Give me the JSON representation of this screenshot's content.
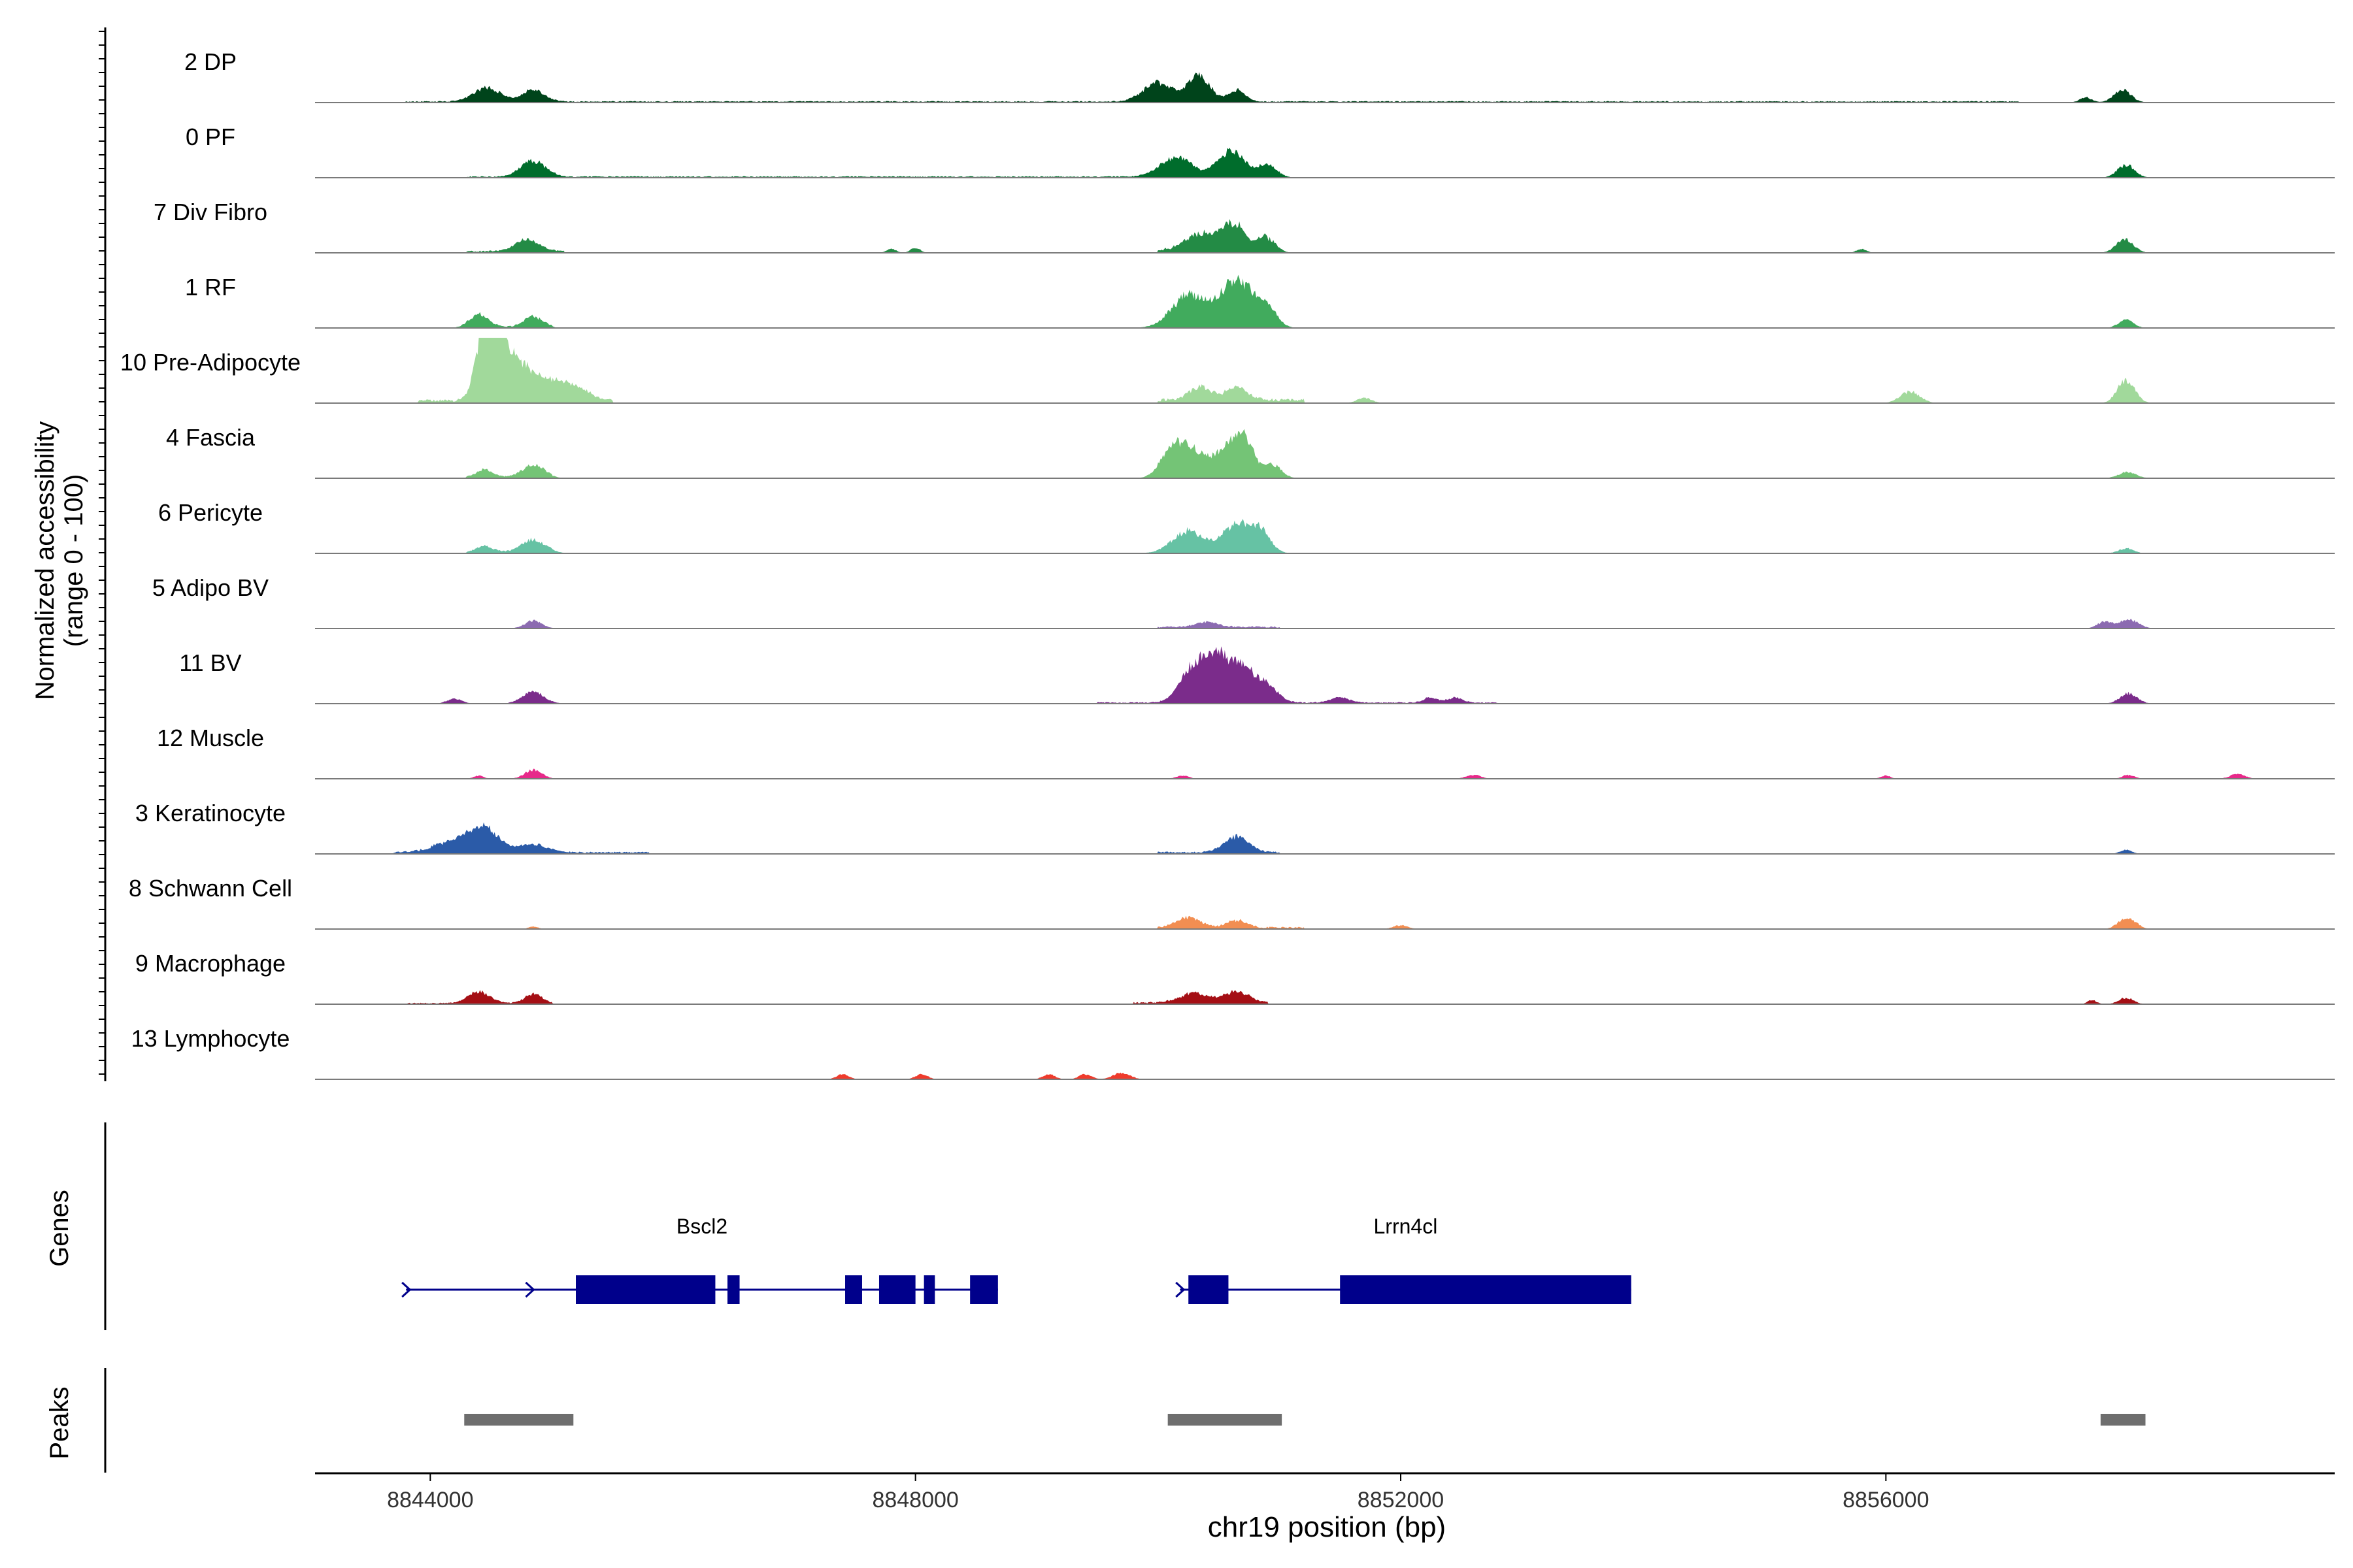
{
  "chart_data": {
    "type": "area",
    "description_free": true,
    "ylabel_line1": "Normalized accessibility",
    "ylabel_line2": "(range 0 - 100)",
    "xlabel": "chr19 position (bp)",
    "xlim": [
      8843050,
      8859700
    ],
    "xticks": [
      8844000,
      8848000,
      8852000,
      8856000
    ],
    "xtick_labels": [
      "8844000",
      "8848000",
      "8852000",
      "8856000"
    ],
    "genes_label": "Genes",
    "peaks_label": "Peaks",
    "tracks": [
      {
        "name": "2 DP",
        "color": "#00441b",
        "segments": [
          [
            8843800,
            8857100,
            0.02
          ]
        ],
        "peaks": [
          [
            8844470,
            110,
            0.22
          ],
          [
            8844850,
            90,
            0.18
          ],
          [
            8850000,
            120,
            0.3
          ],
          [
            8850340,
            90,
            0.42
          ],
          [
            8850650,
            70,
            0.18
          ],
          [
            8857950,
            70,
            0.2
          ],
          [
            8857650,
            50,
            0.08
          ]
        ]
      },
      {
        "name": "0 PF",
        "color": "#006d2c",
        "segments": [
          [
            8844300,
            8851000,
            0.02
          ]
        ],
        "peaks": [
          [
            8844850,
            100,
            0.25
          ],
          [
            8850150,
            130,
            0.3
          ],
          [
            8850600,
            110,
            0.4
          ],
          [
            8850900,
            80,
            0.18
          ],
          [
            8857980,
            70,
            0.2
          ]
        ]
      },
      {
        "name": "7 Div Fibro",
        "color": "#238b45",
        "segments": [
          [
            8844300,
            8845100,
            0.03
          ],
          [
            8850000,
            8850900,
            0.06
          ]
        ],
        "peaks": [
          [
            8844800,
            100,
            0.18
          ],
          [
            8850350,
            120,
            0.25
          ],
          [
            8850620,
            100,
            0.4
          ],
          [
            8850900,
            70,
            0.22
          ],
          [
            8848000,
            40,
            0.08
          ],
          [
            8847800,
            40,
            0.06
          ],
          [
            8855800,
            40,
            0.06
          ],
          [
            8857970,
            70,
            0.22
          ]
        ]
      },
      {
        "name": "1 RF",
        "color": "#41ab5d",
        "segments": [
          [
            8844300,
            8845000,
            0.02
          ]
        ],
        "peaks": [
          [
            8844400,
            80,
            0.2
          ],
          [
            8844850,
            80,
            0.16
          ],
          [
            8850250,
            140,
            0.5
          ],
          [
            8850650,
            140,
            0.75
          ],
          [
            8850900,
            80,
            0.25
          ],
          [
            8857980,
            60,
            0.14
          ]
        ]
      },
      {
        "name": "10 Pre-Adipocyte",
        "color": "#a1d99b",
        "segments": [
          [
            8843900,
            8845500,
            0.05
          ],
          [
            8850000,
            8851200,
            0.06
          ]
        ],
        "peaks": [
          [
            8844450,
            70,
            1.0
          ],
          [
            8844550,
            90,
            0.75
          ],
          [
            8844700,
            120,
            0.45
          ],
          [
            8844950,
            160,
            0.3
          ],
          [
            8845200,
            120,
            0.15
          ],
          [
            8850350,
            100,
            0.2
          ],
          [
            8850650,
            90,
            0.2
          ],
          [
            8851700,
            60,
            0.08
          ],
          [
            8856200,
            80,
            0.18
          ],
          [
            8857980,
            70,
            0.36
          ]
        ]
      },
      {
        "name": "4 Fascia",
        "color": "#74c476",
        "segments": [
          [
            8844300,
            8845000,
            0.02
          ]
        ],
        "peaks": [
          [
            8844450,
            70,
            0.12
          ],
          [
            8844850,
            90,
            0.2
          ],
          [
            8850100,
            90,
            0.3
          ],
          [
            8850250,
            120,
            0.45
          ],
          [
            8850550,
            120,
            0.35
          ],
          [
            8850700,
            90,
            0.55
          ],
          [
            8850950,
            70,
            0.2
          ],
          [
            8857990,
            70,
            0.1
          ]
        ]
      },
      {
        "name": "6 Pericyte",
        "color": "#66c2a4",
        "segments": [
          [
            8844300,
            8845000,
            0.02
          ]
        ],
        "peaks": [
          [
            8844450,
            70,
            0.1
          ],
          [
            8844850,
            100,
            0.2
          ],
          [
            8850250,
            130,
            0.35
          ],
          [
            8850650,
            120,
            0.45
          ],
          [
            8850850,
            80,
            0.3
          ],
          [
            8857980,
            60,
            0.08
          ]
        ]
      },
      {
        "name": "5 Adipo BV",
        "color": "#8c6bb1",
        "segments": [
          [
            8850000,
            8851000,
            0.03
          ]
        ],
        "peaks": [
          [
            8844850,
            70,
            0.12
          ],
          [
            8850400,
            90,
            0.08
          ],
          [
            8857800,
            60,
            0.1
          ],
          [
            8858000,
            80,
            0.14
          ]
        ]
      },
      {
        "name": "11 BV",
        "color": "#7b2c8b",
        "segments": [
          [
            8849500,
            8852800,
            0.02
          ]
        ],
        "peaks": [
          [
            8844200,
            60,
            0.08
          ],
          [
            8844850,
            90,
            0.18
          ],
          [
            8850300,
            110,
            0.55
          ],
          [
            8850500,
            100,
            0.6
          ],
          [
            8850700,
            100,
            0.5
          ],
          [
            8850900,
            90,
            0.25
          ],
          [
            8851500,
            80,
            0.08
          ],
          [
            8852250,
            60,
            0.08
          ],
          [
            8852450,
            60,
            0.08
          ],
          [
            8858000,
            70,
            0.16
          ]
        ]
      },
      {
        "name": "12 Muscle",
        "color": "#e7298a",
        "segments": [],
        "peaks": [
          [
            8844850,
            70,
            0.14
          ],
          [
            8844400,
            40,
            0.05
          ],
          [
            8850200,
            50,
            0.05
          ],
          [
            8852600,
            60,
            0.06
          ],
          [
            8856000,
            40,
            0.05
          ],
          [
            8858000,
            50,
            0.06
          ],
          [
            8858900,
            60,
            0.08
          ]
        ]
      },
      {
        "name": "3 Keratinocyte",
        "color": "#2b5ba8",
        "segments": [
          [
            8843700,
            8845800,
            0.03
          ],
          [
            8850000,
            8851000,
            0.03
          ]
        ],
        "peaks": [
          [
            8844200,
            160,
            0.18
          ],
          [
            8844450,
            120,
            0.35
          ],
          [
            8844850,
            120,
            0.12
          ],
          [
            8850650,
            100,
            0.25
          ],
          [
            8857980,
            50,
            0.06
          ]
        ]
      },
      {
        "name": "8 Schwann Cell",
        "color": "#f28e52",
        "segments": [
          [
            8850000,
            8851200,
            0.03
          ]
        ],
        "peaks": [
          [
            8844850,
            40,
            0.04
          ],
          [
            8850250,
            100,
            0.16
          ],
          [
            8850650,
            80,
            0.12
          ],
          [
            8852000,
            60,
            0.06
          ],
          [
            8857990,
            70,
            0.18
          ]
        ]
      },
      {
        "name": "9 Macrophage",
        "color": "#a50f15",
        "segments": [
          [
            8843800,
            8845000,
            0.02
          ],
          [
            8849800,
            8850900,
            0.03
          ]
        ],
        "peaks": [
          [
            8844400,
            90,
            0.18
          ],
          [
            8844850,
            70,
            0.15
          ],
          [
            8850300,
            120,
            0.15
          ],
          [
            8850650,
            100,
            0.18
          ],
          [
            8857980,
            60,
            0.1
          ],
          [
            8857700,
            40,
            0.06
          ]
        ]
      },
      {
        "name": "13 Lymphocyte",
        "color": "#ef3b2c",
        "segments": [],
        "peaks": [
          [
            8847400,
            50,
            0.08
          ],
          [
            8848050,
            50,
            0.08
          ],
          [
            8849100,
            50,
            0.08
          ],
          [
            8849400,
            50,
            0.08
          ],
          [
            8849700,
            70,
            0.1
          ]
        ]
      }
    ],
    "genes": [
      {
        "name": "Bscl2",
        "color": "#00008b",
        "line": [
          8843800,
          8848680
        ],
        "arrows": [
          8843800,
          8844820,
          8846300
        ],
        "exons": [
          [
            8845200,
            8846350
          ],
          [
            8846450,
            8846550
          ],
          [
            8847420,
            8847560
          ],
          [
            8847700,
            8848000
          ],
          [
            8848070,
            8848160
          ],
          [
            8848450,
            8848680
          ]
        ]
      },
      {
        "name": "Lrrn4cl",
        "color": "#00008b",
        "line": [
          8850180,
          8853900
        ],
        "arrows": [
          8850180
        ],
        "exons": [
          [
            8850250,
            8850580
          ],
          [
            8851500,
            8853900
          ]
        ]
      }
    ],
    "peaks_regions": [
      [
        8844280,
        8845180
      ],
      [
        8850080,
        8851020
      ],
      [
        8857770,
        8858140
      ]
    ]
  }
}
